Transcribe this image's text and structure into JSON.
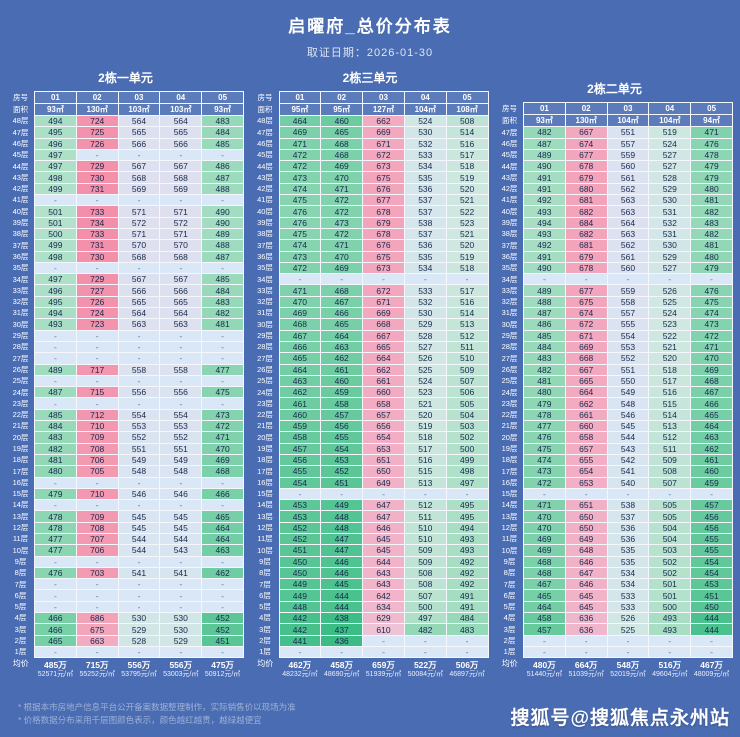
{
  "page": {
    "title": "启曜府_总价分布表",
    "date_label": "取证日期：",
    "date_value": "2026-01-30",
    "watermark": "搜狐号@搜狐焦点永州站",
    "notes": [
      "* 根据本市房地产信息平台公开备案数据整理制作，实际销售价以现场为准",
      "* 价格数据分布采用千层图颜色表示，颜色越红越贵，越绿越便宜"
    ]
  },
  "heat_scale": {
    "background": "#4a6cb3",
    "dash_bg": "#d9e7f6",
    "stops": [
      [
        436,
        "#3bbc85"
      ],
      [
        465,
        "#76cfa6"
      ],
      [
        495,
        "#abdfc6"
      ],
      [
        520,
        "#cfe7e0"
      ],
      [
        545,
        "#d9e5f2"
      ],
      [
        575,
        "#dfdfee"
      ],
      [
        610,
        "#eec3d6"
      ],
      [
        655,
        "#f2aec4"
      ],
      [
        700,
        "#f39cb3"
      ],
      [
        734,
        "#f38faa"
      ]
    ]
  },
  "tables": [
    {
      "title": "2栋一单元",
      "header": {
        "row1_label": "房号",
        "row2_label": "面积",
        "units": [
          "01",
          "02",
          "03",
          "04",
          "05"
        ],
        "areas": [
          "93㎡",
          "130㎡",
          "103㎡",
          "103㎡",
          "93㎡"
        ]
      },
      "rows": [
        [
          "48层",
          494,
          724,
          564,
          564,
          483
        ],
        [
          "47层",
          495,
          725,
          565,
          565,
          484
        ],
        [
          "46层",
          496,
          726,
          566,
          566,
          485
        ],
        [
          "45层",
          497,
          "-",
          "-",
          "-",
          "-"
        ],
        [
          "44层",
          497,
          729,
          567,
          567,
          486
        ],
        [
          "43层",
          498,
          730,
          568,
          568,
          487
        ],
        [
          "42层",
          499,
          731,
          569,
          569,
          488
        ],
        [
          "41层",
          "-",
          "-",
          "-",
          "-",
          "-"
        ],
        [
          "40层",
          501,
          733,
          571,
          571,
          490
        ],
        [
          "39层",
          501,
          734,
          572,
          572,
          490
        ],
        [
          "38层",
          500,
          733,
          571,
          571,
          489
        ],
        [
          "37层",
          499,
          731,
          570,
          570,
          488
        ],
        [
          "36层",
          498,
          730,
          568,
          568,
          487
        ],
        [
          "35层",
          "-",
          "-",
          "-",
          "-",
          "-"
        ],
        [
          "34层",
          497,
          729,
          567,
          567,
          485
        ],
        [
          "33层",
          496,
          727,
          566,
          566,
          484
        ],
        [
          "32层",
          495,
          726,
          565,
          565,
          483
        ],
        [
          "31层",
          494,
          724,
          564,
          564,
          482
        ],
        [
          "30层",
          493,
          723,
          563,
          563,
          481
        ],
        [
          "29层",
          "-",
          "-",
          "-",
          "-",
          "-"
        ],
        [
          "28层",
          "-",
          "-",
          "-",
          "-",
          "-"
        ],
        [
          "27层",
          "-",
          "-",
          "-",
          "-",
          "-"
        ],
        [
          "26层",
          489,
          717,
          558,
          558,
          477
        ],
        [
          "25层",
          "-",
          "-",
          "-",
          "-",
          "-"
        ],
        [
          "24层",
          487,
          715,
          556,
          556,
          475
        ],
        [
          "23层",
          "-",
          "-",
          "-",
          "-",
          "-"
        ],
        [
          "22层",
          485,
          712,
          554,
          554,
          473
        ],
        [
          "21层",
          484,
          710,
          553,
          553,
          472
        ],
        [
          "20层",
          483,
          709,
          552,
          552,
          471
        ],
        [
          "19层",
          482,
          708,
          551,
          551,
          470
        ],
        [
          "18层",
          481,
          706,
          549,
          549,
          469
        ],
        [
          "17层",
          480,
          705,
          548,
          548,
          468
        ],
        [
          "16层",
          "-",
          "-",
          "-",
          "-",
          "-"
        ],
        [
          "15层",
          479,
          710,
          546,
          546,
          466
        ],
        [
          "14层",
          "-",
          "-",
          "-",
          "-",
          "-"
        ],
        [
          "13层",
          478,
          709,
          545,
          545,
          465
        ],
        [
          "12层",
          478,
          708,
          545,
          545,
          464
        ],
        [
          "11层",
          477,
          707,
          544,
          544,
          464
        ],
        [
          "10层",
          477,
          706,
          544,
          543,
          463
        ],
        [
          "9层",
          "-",
          "-",
          "-",
          "-",
          "-"
        ],
        [
          "8层",
          476,
          703,
          541,
          541,
          462
        ],
        [
          "7层",
          "-",
          "-",
          "-",
          "-",
          "-"
        ],
        [
          "6层",
          "-",
          "-",
          "-",
          "-",
          "-"
        ],
        [
          "5层",
          "-",
          "-",
          "-",
          "-",
          "-"
        ],
        [
          "4层",
          466,
          686,
          530,
          530,
          452
        ],
        [
          "3层",
          466,
          675,
          529,
          530,
          452
        ],
        [
          "2层",
          465,
          663,
          528,
          529,
          451
        ],
        [
          "1层",
          "-",
          "-",
          "-",
          "-",
          "-"
        ]
      ],
      "footer": {
        "label": "均价",
        "values": [
          [
            "485万",
            "52571元/㎡"
          ],
          [
            "715万",
            "55252元/㎡"
          ],
          [
            "556万",
            "53795元/㎡"
          ],
          [
            "556万",
            "53003元/㎡"
          ],
          [
            "475万",
            "50912元/㎡"
          ]
        ]
      }
    },
    {
      "title": "2栋三单元",
      "header": {
        "row1_label": "房号",
        "row2_label": "面积",
        "units": [
          "01",
          "02",
          "03",
          "04",
          "05"
        ],
        "areas": [
          "95㎡",
          "95㎡",
          "127㎡",
          "104㎡",
          "108㎡"
        ]
      },
      "rows": [
        [
          "48层",
          464,
          460,
          662,
          524,
          508
        ],
        [
          "47层",
          469,
          465,
          669,
          530,
          514
        ],
        [
          "46层",
          471,
          468,
          671,
          532,
          516
        ],
        [
          "45层",
          472,
          468,
          672,
          533,
          517
        ],
        [
          "44层",
          472,
          469,
          673,
          534,
          518
        ],
        [
          "43层",
          473,
          470,
          675,
          535,
          519
        ],
        [
          "42层",
          474,
          471,
          676,
          536,
          520
        ],
        [
          "41层",
          475,
          472,
          677,
          537,
          521
        ],
        [
          "40层",
          476,
          472,
          678,
          537,
          522
        ],
        [
          "39层",
          476,
          473,
          679,
          538,
          523
        ],
        [
          "38层",
          475,
          472,
          678,
          537,
          521
        ],
        [
          "37层",
          474,
          471,
          676,
          536,
          520
        ],
        [
          "36层",
          473,
          470,
          675,
          535,
          519
        ],
        [
          "35层",
          472,
          469,
          673,
          534,
          518
        ],
        [
          "34层",
          "-",
          "-",
          "-",
          "-",
          "-"
        ],
        [
          "33层",
          471,
          468,
          672,
          533,
          517
        ],
        [
          "32层",
          470,
          467,
          671,
          532,
          516
        ],
        [
          "31层",
          469,
          466,
          669,
          530,
          514
        ],
        [
          "30层",
          468,
          465,
          668,
          529,
          513
        ],
        [
          "29层",
          467,
          464,
          667,
          528,
          512
        ],
        [
          "28层",
          466,
          463,
          665,
          527,
          511
        ],
        [
          "27层",
          465,
          462,
          664,
          526,
          510
        ],
        [
          "26层",
          464,
          461,
          662,
          525,
          509
        ],
        [
          "25层",
          463,
          460,
          661,
          524,
          507
        ],
        [
          "24层",
          462,
          459,
          660,
          523,
          506
        ],
        [
          "23层",
          461,
          458,
          658,
          521,
          505
        ],
        [
          "22层",
          460,
          457,
          657,
          520,
          504
        ],
        [
          "21层",
          459,
          456,
          656,
          519,
          503
        ],
        [
          "20层",
          458,
          455,
          654,
          518,
          502
        ],
        [
          "19层",
          457,
          454,
          653,
          517,
          500
        ],
        [
          "18层",
          456,
          453,
          651,
          516,
          499
        ],
        [
          "17层",
          455,
          452,
          650,
          515,
          498
        ],
        [
          "16层",
          454,
          451,
          649,
          513,
          497
        ],
        [
          "15层",
          "-",
          "-",
          "-",
          "-",
          "-"
        ],
        [
          "14层",
          453,
          449,
          647,
          512,
          495
        ],
        [
          "13层",
          453,
          448,
          647,
          511,
          495
        ],
        [
          "12层",
          452,
          448,
          646,
          510,
          494
        ],
        [
          "11层",
          452,
          447,
          645,
          510,
          493
        ],
        [
          "10层",
          451,
          447,
          645,
          509,
          493
        ],
        [
          "9层",
          450,
          446,
          644,
          509,
          492
        ],
        [
          "8层",
          450,
          446,
          643,
          508,
          492
        ],
        [
          "7层",
          449,
          445,
          643,
          508,
          492
        ],
        [
          "6层",
          449,
          444,
          642,
          507,
          491
        ],
        [
          "5层",
          448,
          444,
          634,
          500,
          491
        ],
        [
          "4层",
          442,
          438,
          629,
          497,
          484
        ],
        [
          "3层",
          442,
          437,
          610,
          482,
          483
        ],
        [
          "2层",
          441,
          436,
          "-",
          "-",
          "-"
        ],
        [
          "1层",
          "-",
          "-",
          "-",
          "-",
          "-"
        ]
      ],
      "footer": {
        "label": "均价",
        "values": [
          [
            "462万",
            "48232元/㎡"
          ],
          [
            "458万",
            "48690元/㎡"
          ],
          [
            "659万",
            "51939元/㎡"
          ],
          [
            "522万",
            "50084元/㎡"
          ],
          [
            "506万",
            "46897元/㎡"
          ]
        ]
      }
    },
    {
      "title": "2栋二单元",
      "header": {
        "row1_label": "房号",
        "row2_label": "面积",
        "units": [
          "01",
          "02",
          "03",
          "04",
          "05"
        ],
        "areas": [
          "93㎡",
          "130㎡",
          "104㎡",
          "104㎡",
          "94㎡"
        ]
      },
      "rows": [
        [
          "47层",
          482,
          667,
          551,
          519,
          471
        ],
        [
          "46层",
          487,
          674,
          557,
          524,
          476
        ],
        [
          "45层",
          489,
          677,
          559,
          527,
          478
        ],
        [
          "44层",
          490,
          678,
          560,
          527,
          479
        ],
        [
          "43层",
          491,
          679,
          561,
          528,
          479
        ],
        [
          "42层",
          491,
          680,
          562,
          529,
          480
        ],
        [
          "41层",
          492,
          681,
          563,
          530,
          481
        ],
        [
          "40层",
          493,
          682,
          563,
          531,
          482
        ],
        [
          "39层",
          494,
          684,
          564,
          532,
          483
        ],
        [
          "38层",
          493,
          682,
          563,
          531,
          482
        ],
        [
          "37层",
          492,
          681,
          562,
          530,
          481
        ],
        [
          "36层",
          491,
          679,
          561,
          529,
          480
        ],
        [
          "35层",
          490,
          678,
          560,
          527,
          479
        ],
        [
          "34层",
          "-",
          "-",
          "-",
          "-",
          "-"
        ],
        [
          "33层",
          489,
          677,
          559,
          526,
          476
        ],
        [
          "32层",
          488,
          675,
          558,
          525,
          475
        ],
        [
          "31层",
          487,
          674,
          557,
          524,
          474
        ],
        [
          "30层",
          486,
          672,
          555,
          523,
          473
        ],
        [
          "29层",
          485,
          671,
          554,
          522,
          472
        ],
        [
          "28层",
          484,
          669,
          553,
          521,
          471
        ],
        [
          "27层",
          483,
          668,
          552,
          520,
          470
        ],
        [
          "26层",
          482,
          667,
          551,
          518,
          469
        ],
        [
          "25层",
          481,
          665,
          550,
          517,
          468
        ],
        [
          "24层",
          480,
          664,
          549,
          516,
          467
        ],
        [
          "23层",
          479,
          662,
          548,
          515,
          466
        ],
        [
          "22层",
          478,
          661,
          546,
          514,
          465
        ],
        [
          "21层",
          477,
          660,
          545,
          513,
          464
        ],
        [
          "20层",
          476,
          658,
          544,
          512,
          463
        ],
        [
          "19层",
          475,
          657,
          543,
          511,
          462
        ],
        [
          "18层",
          474,
          655,
          542,
          509,
          461
        ],
        [
          "17层",
          473,
          654,
          541,
          508,
          460
        ],
        [
          "16层",
          472,
          653,
          540,
          507,
          459
        ],
        [
          "15层",
          "-",
          "-",
          "-",
          "-",
          "-"
        ],
        [
          "14层",
          471,
          651,
          538,
          505,
          457
        ],
        [
          "13层",
          470,
          650,
          537,
          505,
          456
        ],
        [
          "12层",
          470,
          650,
          536,
          504,
          456
        ],
        [
          "11层",
          469,
          649,
          536,
          504,
          455
        ],
        [
          "10层",
          469,
          648,
          535,
          503,
          455
        ],
        [
          "9层",
          468,
          646,
          535,
          502,
          454
        ],
        [
          "8层",
          468,
          647,
          534,
          502,
          454
        ],
        [
          "7层",
          467,
          646,
          534,
          501,
          453
        ],
        [
          "6层",
          465,
          645,
          533,
          501,
          451
        ],
        [
          "5层",
          464,
          645,
          533,
          500,
          450
        ],
        [
          "4层",
          458,
          636,
          526,
          493,
          444
        ],
        [
          "3层",
          457,
          636,
          525,
          493,
          444
        ],
        [
          "2层",
          "-",
          "-",
          "-",
          "-",
          "-"
        ],
        [
          "1层",
          "-",
          "-",
          "-",
          "-",
          "-"
        ]
      ],
      "footer": {
        "label": "均价",
        "values": [
          [
            "480万",
            "51440元/㎡"
          ],
          [
            "664万",
            "51039元/㎡"
          ],
          [
            "548万",
            "52019元/㎡"
          ],
          [
            "516万",
            "49604元/㎡"
          ],
          [
            "467万",
            "48009元/㎡"
          ]
        ]
      }
    }
  ]
}
